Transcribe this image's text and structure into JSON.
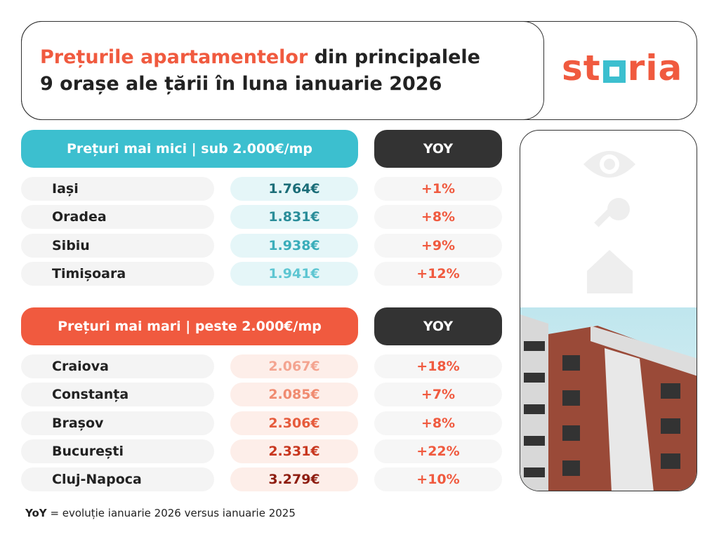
{
  "header": {
    "title_highlight": "Prețurile apartamentelor",
    "title_rest": "din principalele",
    "title_line2": "9 orașe ale țării în luna ianuarie 2026",
    "logo_start": "st",
    "logo_end": "ria"
  },
  "sections": [
    {
      "header": "Prețuri mai mici | sub 2.000€/mp",
      "yoy_header": "YOY",
      "rows": [
        {
          "city": "Iași",
          "price": "1.764€",
          "yoy": "+1%"
        },
        {
          "city": "Oradea",
          "price": "1.831€",
          "yoy": "+8%"
        },
        {
          "city": "Sibiu",
          "price": "1.938€",
          "yoy": "+9%"
        },
        {
          "city": "Timișoara",
          "price": "1.941€",
          "yoy": "+12%"
        }
      ]
    },
    {
      "header": "Prețuri mai mari | peste 2.000€/mp",
      "yoy_header": "YOY",
      "rows": [
        {
          "city": "Craiova",
          "price": "2.067€",
          "yoy": "+18%"
        },
        {
          "city": "Constanța",
          "price": "2.085€",
          "yoy": "+7%"
        },
        {
          "city": "Brașov",
          "price": "2.306€",
          "yoy": "+8%"
        },
        {
          "city": "București",
          "price": "2.331€",
          "yoy": "+22%"
        },
        {
          "city": "Cluj-Napoca",
          "price": "3.279€",
          "yoy": "+10%"
        }
      ]
    }
  ],
  "footnote": {
    "term": "YoY",
    "text": "= evoluție ianuarie 2026 versus ianuarie 2025"
  }
}
